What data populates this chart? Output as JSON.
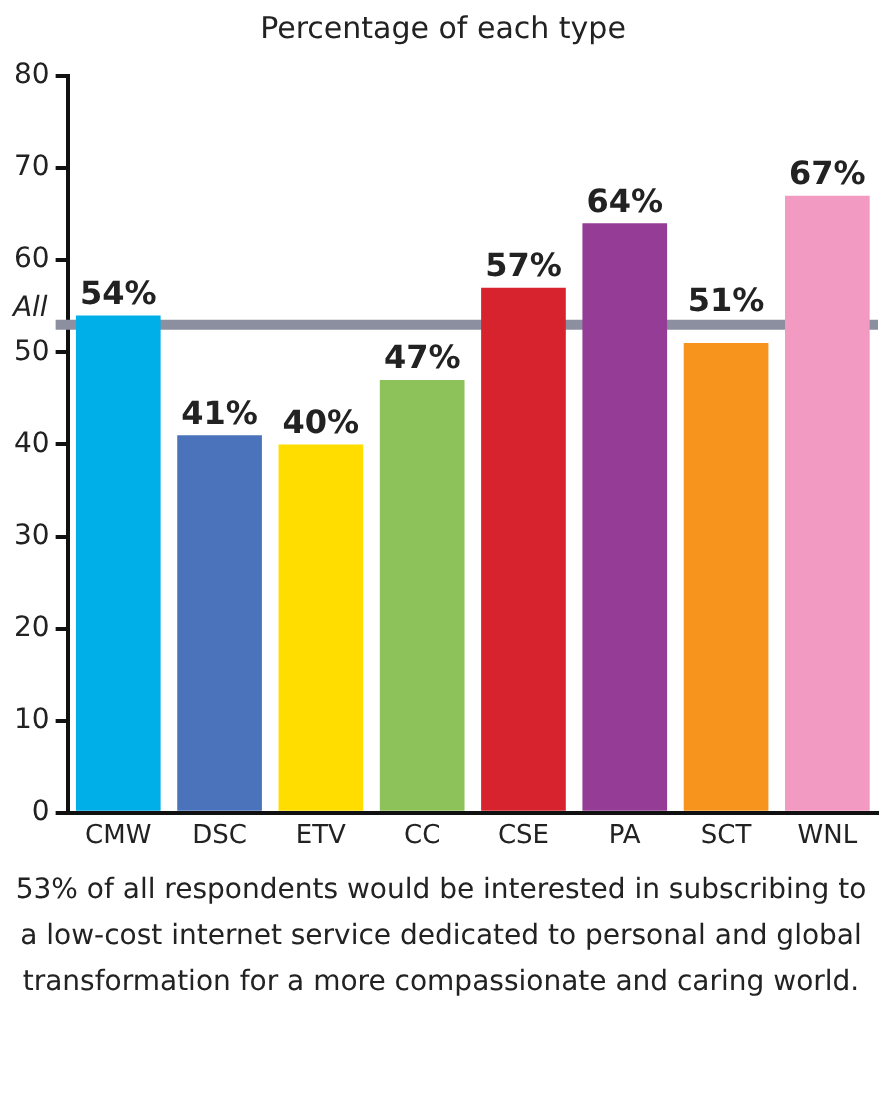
{
  "chart_data": {
    "type": "bar",
    "title": "Percentage of each type",
    "categories": [
      "CMW",
      "DSC",
      "ETV",
      "CC",
      "CSE",
      "PA",
      "SCT",
      "WNL"
    ],
    "values": [
      54,
      41,
      40,
      47,
      57,
      64,
      51,
      67
    ],
    "colors": [
      "#00aee8",
      "#4a73bb",
      "#ffdd00",
      "#8dc15a",
      "#d7232e",
      "#943c96",
      "#f7941d",
      "#f39ac2"
    ],
    "value_labels": [
      "54%",
      "41%",
      "40%",
      "47%",
      "57%",
      "64%",
      "51%",
      "67%"
    ],
    "ylim": [
      0,
      80
    ],
    "yticks": [
      0,
      10,
      20,
      30,
      40,
      50,
      60,
      70,
      80
    ],
    "grid": false,
    "legend": false,
    "ref_lines": [
      {
        "axis": "y",
        "value": 53,
        "label": "All",
        "color": "#8c8fa0"
      }
    ],
    "annotations": [
      "53% of all respondents would be interested in subscribing to a low-cost internet service dedicated to personal and global transformation for a more compassionate and caring world."
    ]
  }
}
